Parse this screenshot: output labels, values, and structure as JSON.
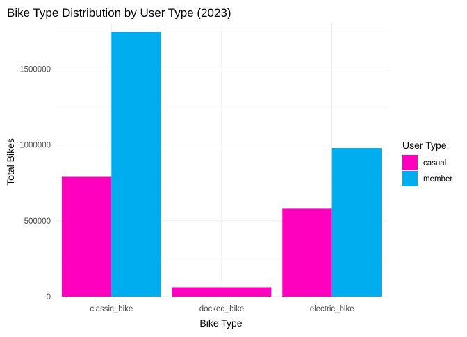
{
  "chart_data": {
    "type": "bar",
    "title": "Bike Type Distribution by User Type (2023)",
    "xlabel": "Bike Type",
    "ylabel": "Total Bikes",
    "categories": [
      "classic_bike",
      "docked_bike",
      "electric_bike"
    ],
    "series": [
      {
        "name": "casual",
        "color": "#FF00BF",
        "values": [
          790000,
          62000,
          580000
        ]
      },
      {
        "name": "member",
        "color": "#00ADEE",
        "values": [
          1745000,
          0,
          980000
        ]
      }
    ],
    "ylim": [
      0,
      1800000
    ],
    "yticks": [
      0,
      500000,
      1000000,
      1500000
    ],
    "ytick_labels": [
      "0",
      "500000",
      "1000000",
      "1500000"
    ],
    "legend": {
      "title": "User Type",
      "position": "right"
    },
    "grid": true
  }
}
